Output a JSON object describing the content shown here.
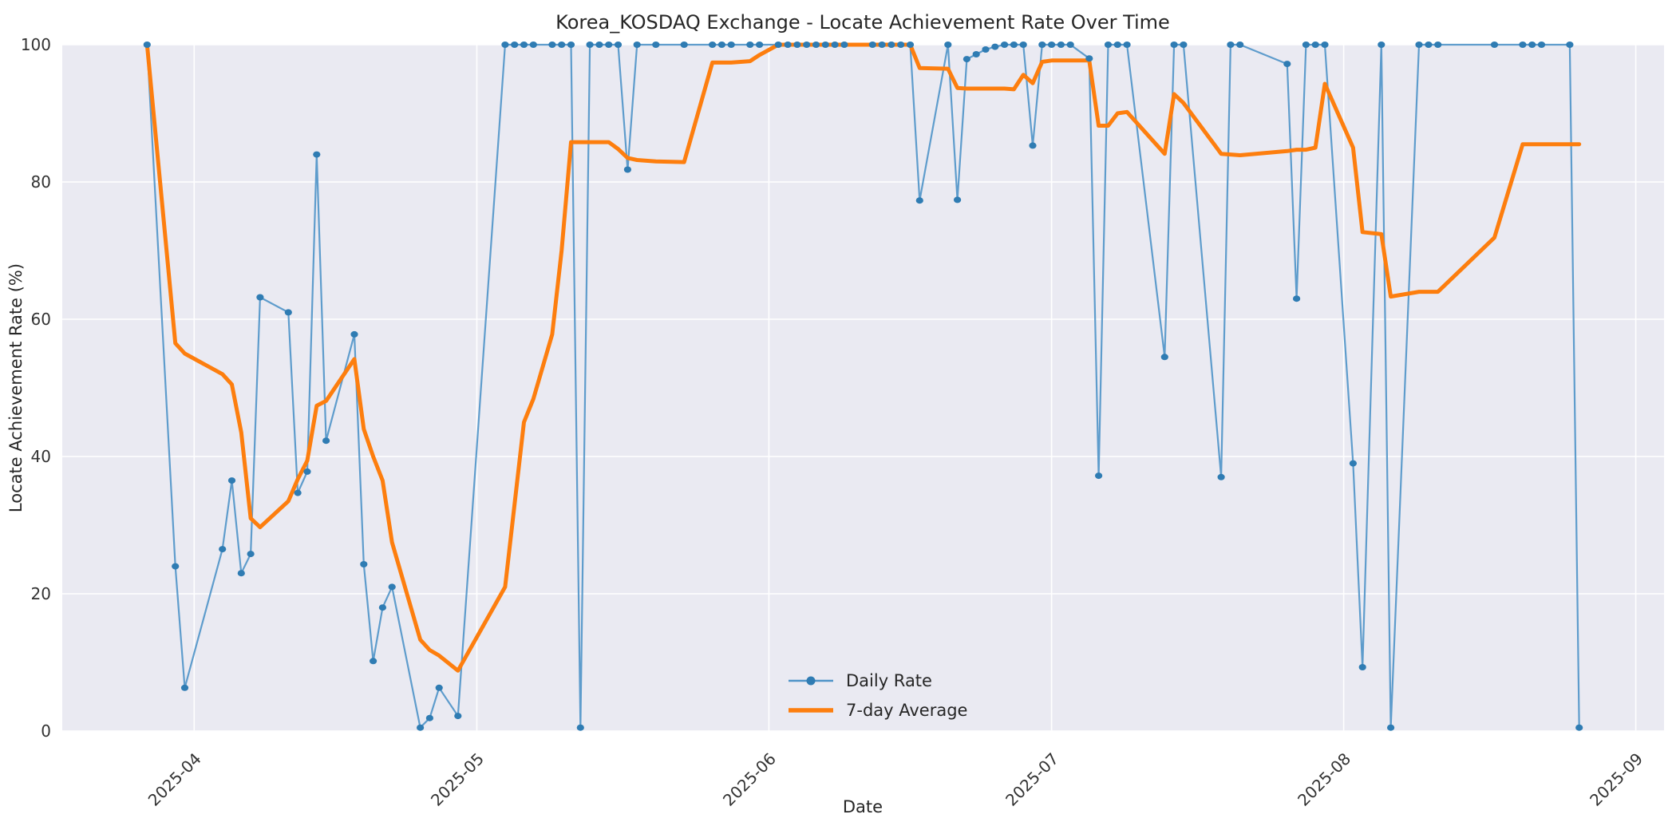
{
  "title": "Korea_KOSDAQ Exchange - Locate Achievement Rate Over Time",
  "axes": {
    "xlabel": "Date",
    "ylabel": "Locate Achievement Rate (%)",
    "x_tick_labels": [
      "2025-04",
      "2025-05",
      "2025-06",
      "2025-07",
      "2025-08",
      "2025-09"
    ],
    "y_tick_labels": [
      "0",
      "20",
      "40",
      "60",
      "80",
      "100"
    ]
  },
  "legend": {
    "items": [
      "Daily Rate",
      "7-day Average"
    ],
    "position": "lower center"
  },
  "colors": {
    "plot_background": "#eaeaf2",
    "gridline": "#ffffff",
    "daily_line": "#4f94c8",
    "daily_marker": "#2f7cb3",
    "avg_line": "#fd7e0e",
    "text": "#262626"
  },
  "chart_data": {
    "type": "line",
    "title": "Korea_KOSDAQ Exchange - Locate Achievement Rate Over Time",
    "xlabel": "Date",
    "ylabel": "Locate Achievement Rate (%)",
    "ylim": [
      0,
      100
    ],
    "x_range": [
      "2025-03-18",
      "2025-09-04"
    ],
    "grid": true,
    "legend_position": "lower center",
    "x_ticks": [
      {
        "date": "2025-04-01",
        "label": "2025-04"
      },
      {
        "date": "2025-05-01",
        "label": "2025-05"
      },
      {
        "date": "2025-06-01",
        "label": "2025-06"
      },
      {
        "date": "2025-07-01",
        "label": "2025-07"
      },
      {
        "date": "2025-08-01",
        "label": "2025-08"
      },
      {
        "date": "2025-09-01",
        "label": "2025-09"
      }
    ],
    "y_ticks": [
      0,
      20,
      40,
      60,
      80,
      100
    ],
    "x": [
      "2025-03-27",
      "2025-03-30",
      "2025-03-31",
      "2025-04-04",
      "2025-04-05",
      "2025-04-06",
      "2025-04-07",
      "2025-04-08",
      "2025-04-11",
      "2025-04-12",
      "2025-04-13",
      "2025-04-14",
      "2025-04-15",
      "2025-04-18",
      "2025-04-19",
      "2025-04-20",
      "2025-04-21",
      "2025-04-22",
      "2025-04-25",
      "2025-04-26",
      "2025-04-27",
      "2025-04-29",
      "2025-05-04",
      "2025-05-05",
      "2025-05-06",
      "2025-05-07",
      "2025-05-09",
      "2025-05-10",
      "2025-05-11",
      "2025-05-12",
      "2025-05-13",
      "2025-05-14",
      "2025-05-15",
      "2025-05-16",
      "2025-05-17",
      "2025-05-18",
      "2025-05-20",
      "2025-05-23",
      "2025-05-26",
      "2025-05-27",
      "2025-05-28",
      "2025-05-30",
      "2025-05-31",
      "2025-06-02",
      "2025-06-03",
      "2025-06-04",
      "2025-06-05",
      "2025-06-06",
      "2025-06-07",
      "2025-06-08",
      "2025-06-09",
      "2025-06-12",
      "2025-06-13",
      "2025-06-14",
      "2025-06-15",
      "2025-06-16",
      "2025-06-17",
      "2025-06-20",
      "2025-06-21",
      "2025-06-22",
      "2025-06-23",
      "2025-06-24",
      "2025-06-25",
      "2025-06-26",
      "2025-06-27",
      "2025-06-28",
      "2025-06-29",
      "2025-06-30",
      "2025-07-01",
      "2025-07-02",
      "2025-07-03",
      "2025-07-05",
      "2025-07-06",
      "2025-07-07",
      "2025-07-08",
      "2025-07-09",
      "2025-07-13",
      "2025-07-14",
      "2025-07-15",
      "2025-07-19",
      "2025-07-20",
      "2025-07-21",
      "2025-07-26",
      "2025-07-27",
      "2025-07-28",
      "2025-07-29",
      "2025-07-30",
      "2025-08-02",
      "2025-08-03",
      "2025-08-05",
      "2025-08-06",
      "2025-08-09",
      "2025-08-10",
      "2025-08-11",
      "2025-08-17",
      "2025-08-20",
      "2025-08-21",
      "2025-08-22",
      "2025-08-25",
      "2025-08-26"
    ],
    "series": [
      {
        "name": "Daily Rate",
        "color": "#4f94c8",
        "marker": "circle",
        "marker_color": "#2f7cb3",
        "values": [
          100,
          24,
          6.3,
          26.5,
          36.5,
          23,
          25.8,
          63.2,
          61,
          34.7,
          37.8,
          84,
          42.3,
          57.8,
          24.3,
          10.2,
          18,
          21,
          0.5,
          1.9,
          6.3,
          2.2,
          100,
          100,
          100,
          100,
          100,
          100,
          100,
          0.5,
          100,
          100,
          100,
          100,
          81.8,
          100,
          100,
          100,
          100,
          100,
          100,
          100,
          100,
          100,
          100,
          100,
          100,
          100,
          100,
          100,
          100,
          100,
          100,
          100,
          100,
          100,
          77.3,
          100,
          77.4,
          97.9,
          98.6,
          99.3,
          99.7,
          100,
          100,
          100,
          85.3,
          100,
          100,
          100,
          100,
          98,
          37.2,
          100,
          100,
          100,
          54.5,
          100,
          100,
          37,
          100,
          100,
          97.2,
          63,
          100,
          100,
          100,
          39,
          9.3,
          100,
          0.5,
          100,
          100,
          100,
          100,
          100,
          100,
          100,
          100,
          0.5
        ]
      },
      {
        "name": "7-day Average",
        "color": "#fd7e0e",
        "marker": "none",
        "values": [
          100,
          56.5,
          55,
          52,
          50.5,
          43.5,
          31,
          29.7,
          33.5,
          36.7,
          39.4,
          47.4,
          48.1,
          54.2,
          44,
          40,
          36.5,
          27.5,
          13.3,
          11.8,
          11,
          8.8,
          21,
          33,
          45,
          48.4,
          57.8,
          70,
          85.8,
          85.8,
          85.8,
          85.8,
          85.8,
          84.8,
          83.5,
          83.2,
          83.0,
          82.9,
          97.4,
          97.4,
          97.4,
          97.6,
          98.5,
          100,
          100,
          100,
          100,
          100,
          100,
          100,
          100,
          100,
          100,
          100,
          100,
          100,
          96.6,
          96.5,
          93.7,
          93.6,
          93.6,
          93.6,
          93.6,
          93.6,
          93.5,
          95.6,
          94.4,
          97.5,
          97.7,
          97.7,
          97.7,
          97.7,
          88.2,
          88.2,
          90,
          90.2,
          84.1,
          92.8,
          91.5,
          84.1,
          84,
          83.9,
          84.5,
          84.7,
          84.7,
          85,
          94.3,
          85,
          72.7,
          72.4,
          63.3,
          64,
          64,
          64,
          71.9,
          85.5,
          85.5,
          85.5,
          85.5,
          85.5
        ]
      }
    ]
  }
}
